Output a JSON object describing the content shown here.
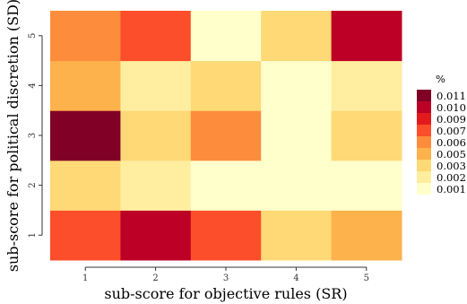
{
  "chart_data": {
    "type": "heatmap",
    "title": "",
    "xlabel": "sub-score for objective rules (SR)",
    "ylabel": "sub-score for political discretion (SD)",
    "x": [
      1,
      2,
      3,
      4,
      5
    ],
    "y": [
      1,
      2,
      3,
      4,
      5
    ],
    "z_rows_by_y": [
      {
        "y": 1,
        "values": [
          0.007,
          0.01,
          0.007,
          0.003,
          0.005
        ]
      },
      {
        "y": 2,
        "values": [
          0.003,
          0.002,
          0.001,
          0.001,
          0.001
        ]
      },
      {
        "y": 3,
        "values": [
          0.011,
          0.003,
          0.006,
          0.001,
          0.003
        ]
      },
      {
        "y": 4,
        "values": [
          0.005,
          0.002,
          0.003,
          0.001,
          0.002
        ]
      },
      {
        "y": 5,
        "values": [
          0.006,
          0.007,
          0.001,
          0.003,
          0.01
        ]
      }
    ],
    "legend": {
      "title": "%",
      "position": "right",
      "entries": [
        {
          "label": "0.011",
          "value": 0.011,
          "color": "#800026"
        },
        {
          "label": "0.010",
          "value": 0.01,
          "color": "#BD0026"
        },
        {
          "label": "0.009",
          "value": 0.009,
          "color": "#E31A1C"
        },
        {
          "label": "0.007",
          "value": 0.007,
          "color": "#FC4E2A"
        },
        {
          "label": "0.006",
          "value": 0.006,
          "color": "#FD8D3C"
        },
        {
          "label": "0.005",
          "value": 0.005,
          "color": "#FEB24C"
        },
        {
          "label": "0.003",
          "value": 0.003,
          "color": "#FED976"
        },
        {
          "label": "0.002",
          "value": 0.002,
          "color": "#FFEDA0"
        },
        {
          "label": "0.001",
          "value": 0.001,
          "color": "#FFFFCC"
        }
      ]
    },
    "grid": false
  }
}
